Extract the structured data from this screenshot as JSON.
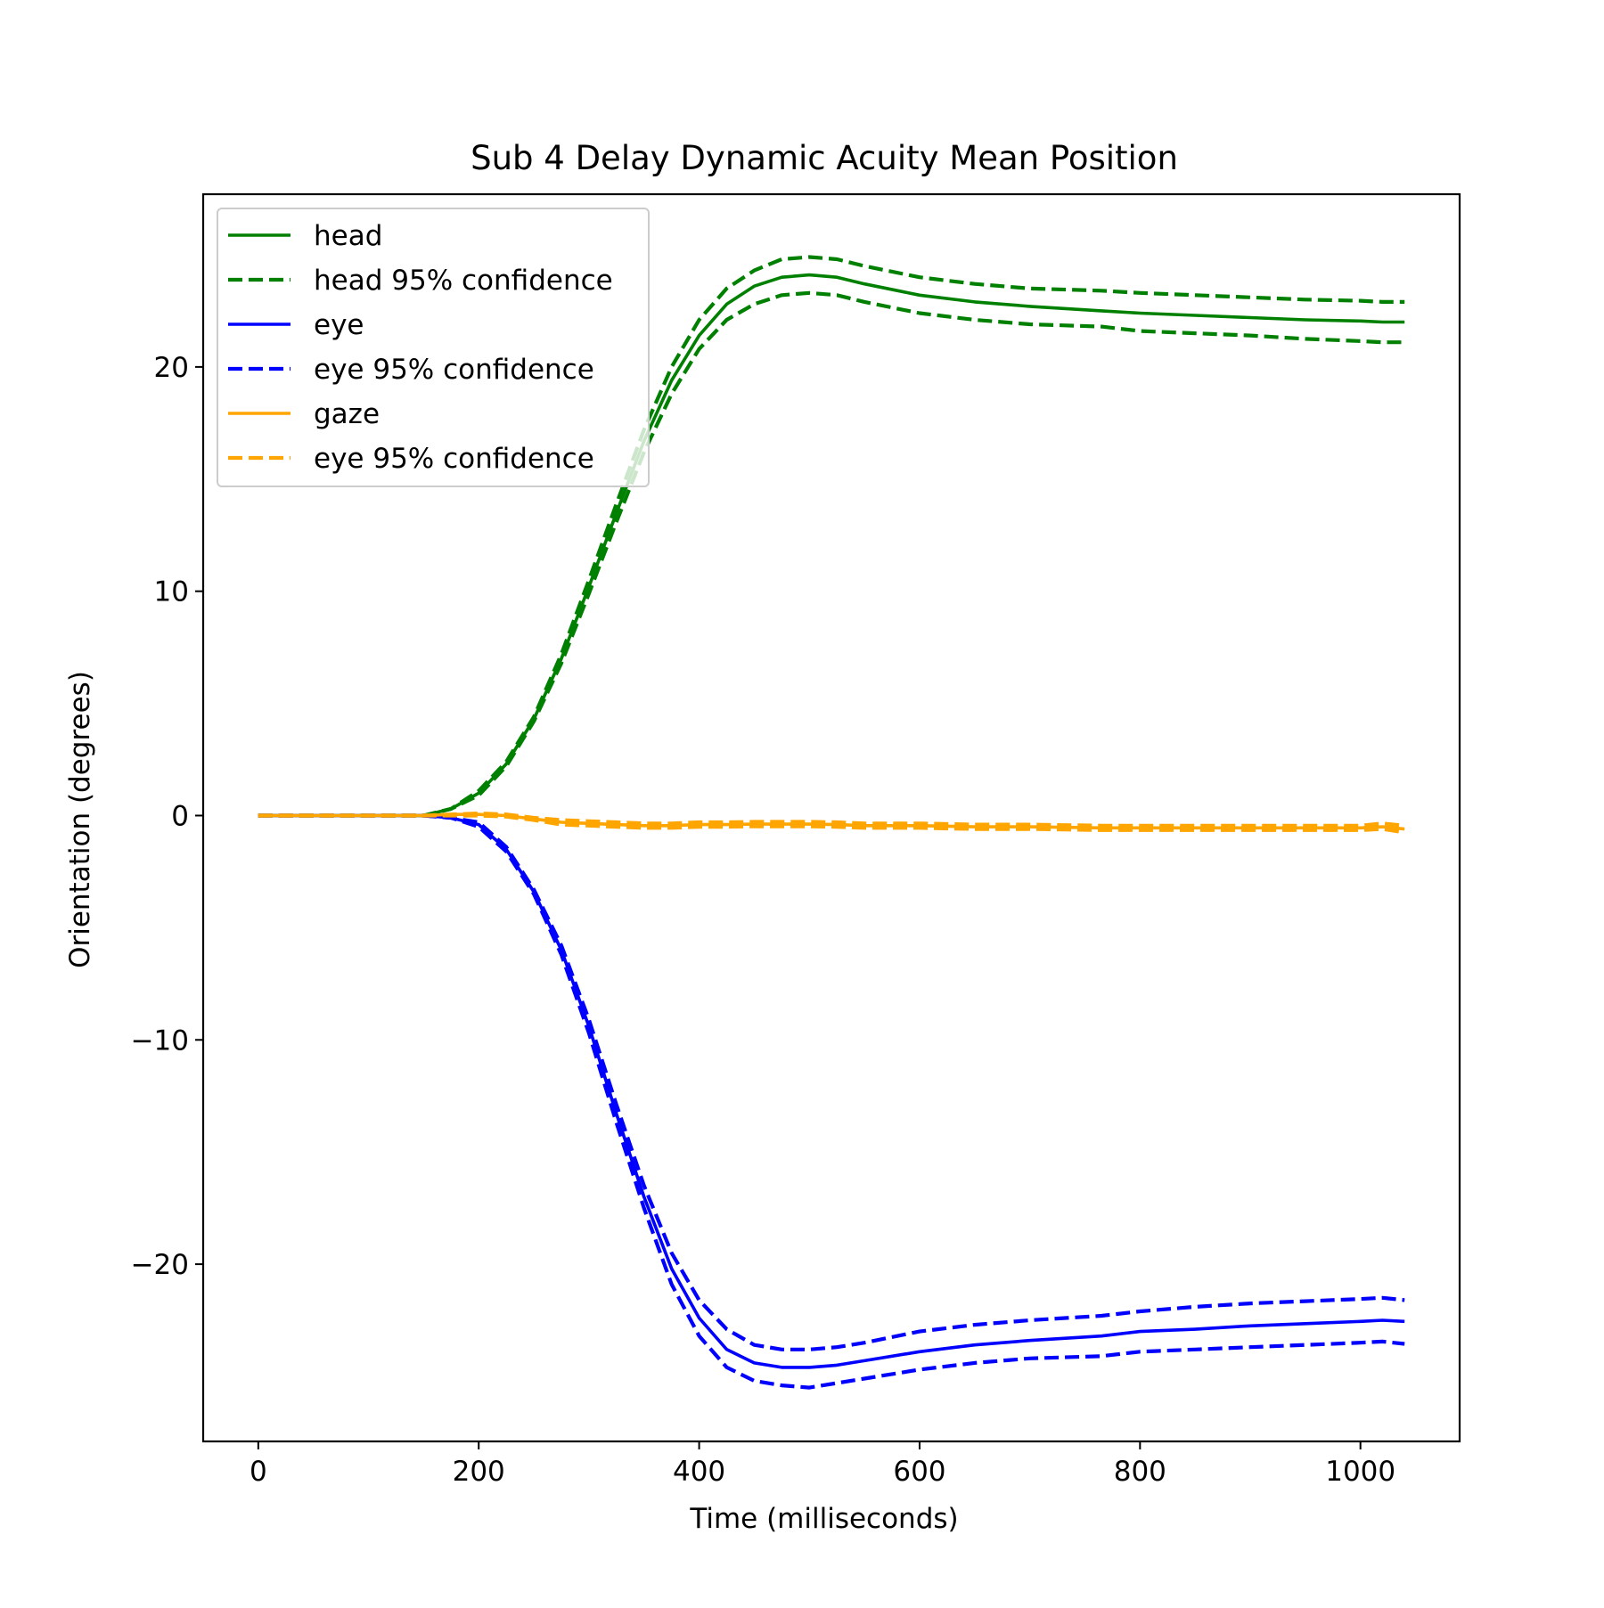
{
  "chart_data": {
    "type": "line",
    "title": "Sub 4 Delay Dynamic Acuity Mean Position",
    "xlabel": "Time (milliseconds)",
    "ylabel": "Orientation (degrees)",
    "xlim": [
      -50,
      1090
    ],
    "ylim": [
      -27.9,
      27.7
    ],
    "xticks": [
      0,
      200,
      400,
      600,
      800,
      1000
    ],
    "yticks": [
      -20,
      -10,
      0,
      10,
      20
    ],
    "xtick_labels": [
      "0",
      "200",
      "400",
      "600",
      "800",
      "1000"
    ],
    "ytick_labels": [
      "−20",
      "−10",
      "0",
      "10",
      "20"
    ],
    "grid": false,
    "legend_position": "upper-left",
    "colors": {
      "head": "#008000",
      "eye": "#0000ff",
      "gaze": "#ffa500"
    },
    "legend": [
      {
        "label": "head",
        "color": "#008000",
        "style": "solid"
      },
      {
        "label": "head 95% confidence",
        "color": "#008000",
        "style": "dashed"
      },
      {
        "label": "eye",
        "color": "#0000ff",
        "style": "solid"
      },
      {
        "label": "eye 95% confidence",
        "color": "#0000ff",
        "style": "dashed"
      },
      {
        "label": "gaze",
        "color": "#ffa500",
        "style": "solid"
      },
      {
        "label": "eye 95% confidence",
        "color": "#ffa500",
        "style": "dashed"
      }
    ],
    "x": [
      0,
      50,
      100,
      150,
      175,
      200,
      225,
      250,
      275,
      300,
      325,
      350,
      375,
      400,
      425,
      450,
      475,
      500,
      525,
      550,
      600,
      650,
      700,
      765,
      800,
      850,
      900,
      950,
      1000,
      1020,
      1040
    ],
    "series": [
      {
        "name": "head",
        "color": "#008000",
        "style": "solid",
        "values": [
          0,
          0,
          0,
          0,
          0.3,
          1.0,
          2.3,
          4.3,
          7.0,
          10.2,
          13.5,
          16.7,
          19.4,
          21.4,
          22.8,
          23.6,
          24.0,
          24.1,
          24.0,
          23.7,
          23.2,
          22.9,
          22.7,
          22.5,
          22.4,
          22.3,
          22.2,
          22.1,
          22.05,
          22.0,
          22.0
        ]
      },
      {
        "name": "head 95% confidence",
        "color": "#008000",
        "style": "dashed",
        "values": [
          0,
          0,
          0,
          0,
          0.3,
          1.1,
          2.4,
          4.4,
          7.2,
          10.5,
          13.9,
          17.2,
          20.0,
          22.1,
          23.5,
          24.3,
          24.8,
          24.9,
          24.8,
          24.5,
          24.0,
          23.7,
          23.5,
          23.4,
          23.3,
          23.2,
          23.1,
          23.0,
          22.95,
          22.9,
          22.9
        ]
      },
      {
        "name": "head 95% confidence",
        "color": "#008000",
        "style": "dashed",
        "values": [
          0,
          0,
          0,
          0,
          0.3,
          0.9,
          2.2,
          4.2,
          6.8,
          9.9,
          13.1,
          16.2,
          18.8,
          20.8,
          22.1,
          22.8,
          23.2,
          23.3,
          23.2,
          22.9,
          22.4,
          22.1,
          21.9,
          21.8,
          21.6,
          21.5,
          21.4,
          21.25,
          21.15,
          21.1,
          21.1
        ]
      },
      {
        "name": "eye",
        "color": "#0000ff",
        "style": "solid",
        "values": [
          0,
          0,
          0,
          0,
          -0.1,
          -0.4,
          -1.5,
          -3.4,
          -6.0,
          -9.4,
          -13.3,
          -17.0,
          -20.2,
          -22.4,
          -23.8,
          -24.4,
          -24.6,
          -24.6,
          -24.5,
          -24.3,
          -23.9,
          -23.6,
          -23.4,
          -23.2,
          -23.0,
          -22.9,
          -22.75,
          -22.65,
          -22.55,
          -22.5,
          -22.55
        ]
      },
      {
        "name": "eye 95% confidence",
        "color": "#0000ff",
        "style": "dashed",
        "values": [
          0,
          0,
          0,
          0,
          -0.1,
          -0.3,
          -1.4,
          -3.3,
          -5.8,
          -9.1,
          -12.9,
          -16.5,
          -19.5,
          -21.6,
          -22.9,
          -23.6,
          -23.8,
          -23.8,
          -23.7,
          -23.5,
          -23.0,
          -22.7,
          -22.5,
          -22.3,
          -22.1,
          -21.9,
          -21.75,
          -21.65,
          -21.55,
          -21.5,
          -21.6
        ]
      },
      {
        "name": "eye 95% confidence",
        "color": "#0000ff",
        "style": "dashed",
        "values": [
          0,
          0,
          0,
          0,
          -0.1,
          -0.5,
          -1.6,
          -3.5,
          -6.2,
          -9.7,
          -13.7,
          -17.5,
          -20.9,
          -23.2,
          -24.6,
          -25.2,
          -25.4,
          -25.5,
          -25.3,
          -25.1,
          -24.7,
          -24.4,
          -24.2,
          -24.1,
          -23.9,
          -23.8,
          -23.7,
          -23.6,
          -23.5,
          -23.45,
          -23.55
        ]
      },
      {
        "name": "gaze",
        "color": "#ffa500",
        "style": "solid",
        "values": [
          0,
          0,
          0,
          0,
          0.05,
          0.05,
          0.0,
          -0.15,
          -0.3,
          -0.35,
          -0.4,
          -0.45,
          -0.45,
          -0.4,
          -0.4,
          -0.38,
          -0.38,
          -0.38,
          -0.4,
          -0.45,
          -0.45,
          -0.5,
          -0.5,
          -0.55,
          -0.55,
          -0.55,
          -0.55,
          -0.55,
          -0.55,
          -0.5,
          -0.6
        ]
      },
      {
        "name": "eye 95% confidence",
        "color": "#ffa500",
        "style": "dashed",
        "values": [
          0,
          0,
          0,
          0,
          0.05,
          0.1,
          0.05,
          -0.1,
          -0.2,
          -0.25,
          -0.3,
          -0.35,
          -0.35,
          -0.3,
          -0.3,
          -0.28,
          -0.28,
          -0.28,
          -0.3,
          -0.35,
          -0.35,
          -0.4,
          -0.4,
          -0.45,
          -0.45,
          -0.45,
          -0.45,
          -0.45,
          -0.45,
          -0.35,
          -0.45
        ]
      },
      {
        "name": "eye 95% confidence",
        "color": "#ffa500",
        "style": "dashed",
        "values": [
          0,
          0,
          0,
          0,
          0.0,
          0.0,
          -0.05,
          -0.2,
          -0.4,
          -0.45,
          -0.5,
          -0.55,
          -0.55,
          -0.5,
          -0.5,
          -0.48,
          -0.48,
          -0.48,
          -0.5,
          -0.55,
          -0.55,
          -0.6,
          -0.6,
          -0.65,
          -0.65,
          -0.65,
          -0.65,
          -0.65,
          -0.65,
          -0.6,
          -0.75
        ]
      }
    ]
  }
}
